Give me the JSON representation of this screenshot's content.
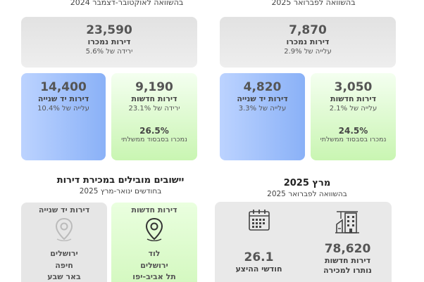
{
  "top_left_caption": "בהשוואה לאוקטובר-דצמבר 2024",
  "top_right_caption": "בהשוואה לפברואר 2025",
  "left_total": {
    "value": "23,590",
    "label": "דירות נמכרו",
    "change": "ירידה של 5.6%"
  },
  "left_second_hand": {
    "value": "14,400",
    "label": "דירות יד שנייה",
    "change": "עלייה של 10.4%"
  },
  "left_new": {
    "value": "9,190",
    "label": "דירות חדשות",
    "change": "ירידה של 23.1%",
    "share": "26.5%",
    "share_label": "נמכרו בסבסוד ממשלתי"
  },
  "right_total": {
    "value": "7,870",
    "label": "דירות נמכרו",
    "change": "עלייה של 2.9%"
  },
  "right_second_hand": {
    "value": "4,820",
    "label": "דירות יד שנייה",
    "change": "עלייה של 3.3%"
  },
  "right_new": {
    "value": "3,050",
    "label": "דירות חדשות",
    "change": "עלייה של 2.1%",
    "share": "24.5%",
    "share_label": "נמכרו בסבסוד ממשלתי"
  },
  "leading": {
    "title": "יישובים מובילים במכירת דירות",
    "subtitle": "בחודשים ינואר-מרץ 2025",
    "second_hand_header": "דירות יד שנייה",
    "new_header": "דירות חדשות",
    "second_hand_cities": [
      "ירושלים",
      "חיפה",
      "באר שבע"
    ],
    "new_cities": [
      "לוד",
      "ירושלים",
      "תל אביב-יפו"
    ]
  },
  "march": {
    "title": "מרץ 2025",
    "subtitle": "בהשוואה לפברואר 2025",
    "months_value": "26.1",
    "months_label": "חודשי ההיצע",
    "unsold_value": "78,620",
    "unsold_label_1": "דירות חדשות",
    "unsold_label_2": "נותרו למכירה"
  },
  "icons": [
    "location-pin-icon",
    "calendar-icon",
    "buildings-crane-icon"
  ]
}
